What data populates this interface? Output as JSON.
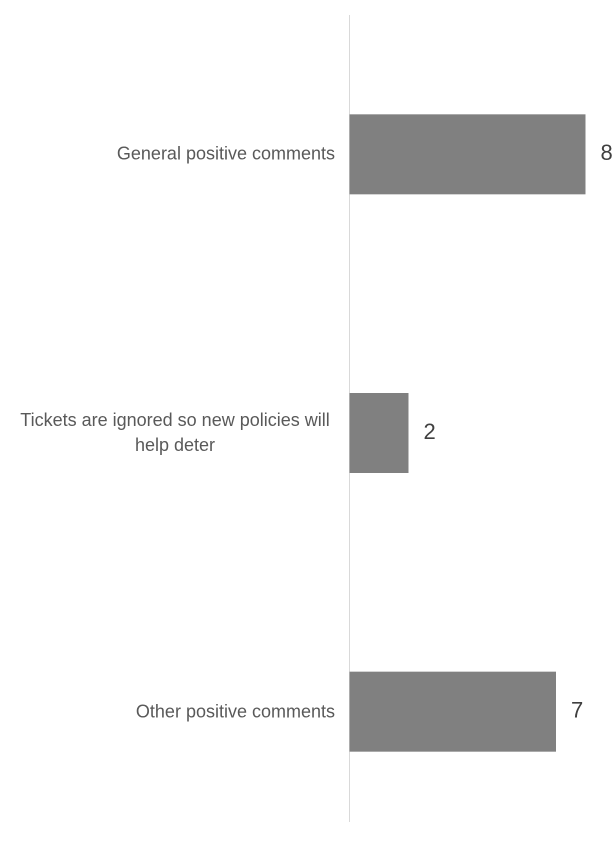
{
  "chart_data": {
    "type": "bar",
    "orientation": "horizontal",
    "categories": [
      "General positive comments",
      "Tickets are ignored so new policies will help deter",
      "Other positive comments"
    ],
    "values": [
      8,
      2,
      7
    ],
    "color": "#808080",
    "xlim": [
      0,
      9
    ]
  }
}
